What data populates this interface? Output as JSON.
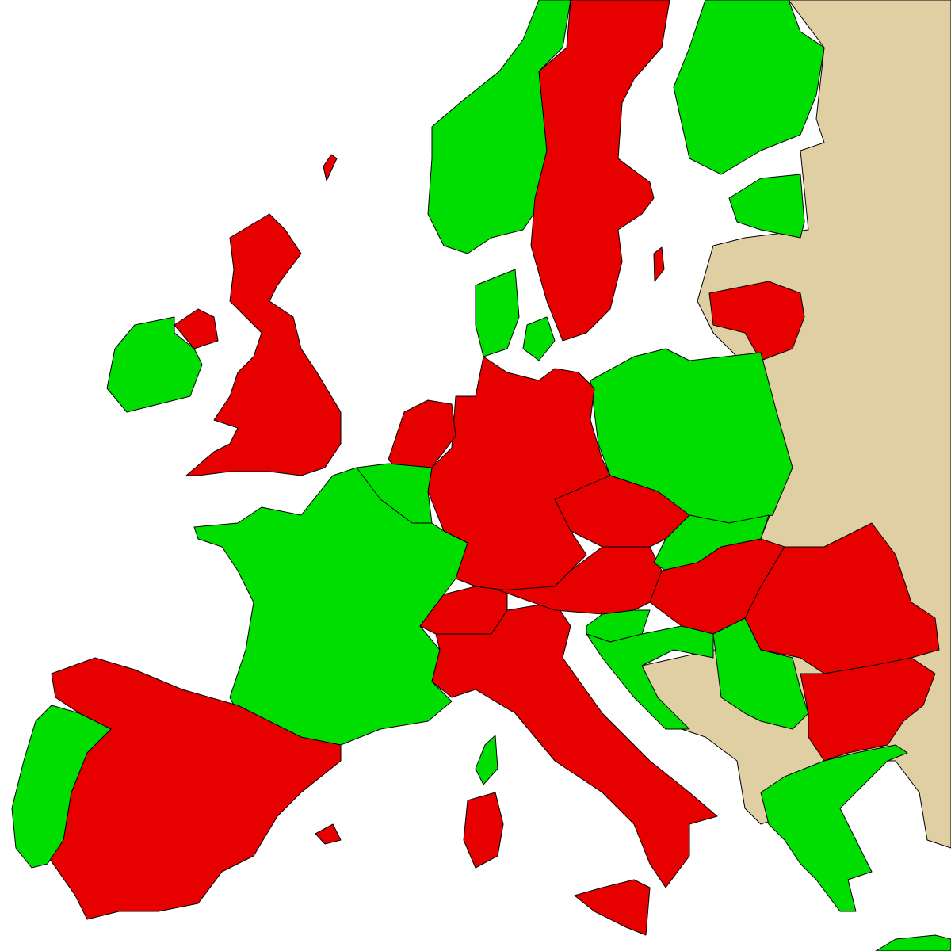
{
  "map": {
    "colors": {
      "sea": "#ffffff",
      "category_red": "#e60000",
      "category_green": "#00dd00",
      "other": "#dfcfa3",
      "border": "#000000"
    }
  }
}
